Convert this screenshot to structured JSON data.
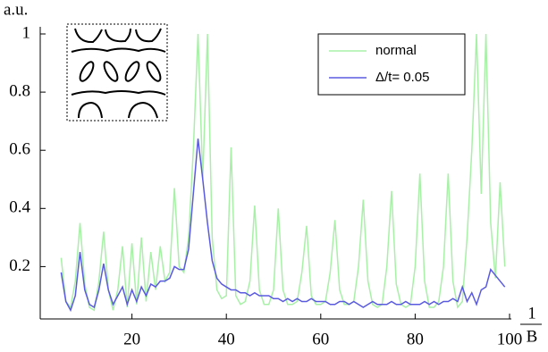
{
  "chart_data": {
    "type": "line",
    "y_label": "a.u.",
    "x_label_numerator": "1",
    "x_label_denominator": "B",
    "x": [
      5,
      6,
      7,
      8,
      9,
      10,
      11,
      12,
      13,
      14,
      15,
      16,
      17,
      18,
      19,
      20,
      21,
      22,
      23,
      24,
      25,
      26,
      27,
      28,
      29,
      30,
      31,
      32,
      33,
      34,
      35,
      36,
      37,
      38,
      39,
      40,
      41,
      42,
      43,
      44,
      45,
      46,
      47,
      48,
      49,
      50,
      51,
      52,
      53,
      54,
      55,
      56,
      57,
      58,
      59,
      60,
      61,
      62,
      63,
      64,
      65,
      66,
      67,
      68,
      69,
      70,
      71,
      72,
      73,
      74,
      75,
      76,
      77,
      78,
      79,
      80,
      81,
      82,
      83,
      84,
      85,
      86,
      87,
      88,
      89,
      90,
      91,
      92,
      93,
      94,
      95,
      96,
      97,
      98,
      99
    ],
    "series": [
      {
        "name": "normal",
        "color": "#a8f0a8",
        "values": [
          0.23,
          0.08,
          0.06,
          0.15,
          0.35,
          0.14,
          0.06,
          0.05,
          0.15,
          0.32,
          0.12,
          0.05,
          0.12,
          0.27,
          0.06,
          0.28,
          0.07,
          0.3,
          0.08,
          0.25,
          0.12,
          0.27,
          0.15,
          0.18,
          0.47,
          0.2,
          0.18,
          0.3,
          0.6,
          1,
          0.5,
          1,
          0.3,
          0.12,
          0.09,
          0.1,
          0.61,
          0.1,
          0.07,
          0.08,
          0.15,
          0.41,
          0.12,
          0.07,
          0.07,
          0.12,
          0.4,
          0.12,
          0.07,
          0.07,
          0.08,
          0.18,
          0.34,
          0.1,
          0.07,
          0.07,
          0.08,
          0.18,
          0.36,
          0.12,
          0.07,
          0.07,
          0.08,
          0.2,
          0.43,
          0.15,
          0.07,
          0.06,
          0.07,
          0.2,
          0.46,
          0.14,
          0.07,
          0.06,
          0.07,
          0.2,
          0.52,
          0.15,
          0.06,
          0.06,
          0.08,
          0.2,
          0.52,
          0.15,
          0.06,
          0.08,
          0.3,
          0.6,
          1,
          0.45,
          1,
          0.35,
          0.16,
          0.49,
          0.2
        ]
      },
      {
        "name": "Δ/t= 0.05",
        "color": "#5a5ae0",
        "values": [
          0.18,
          0.08,
          0.05,
          0.1,
          0.25,
          0.12,
          0.07,
          0.06,
          0.12,
          0.21,
          0.12,
          0.07,
          0.1,
          0.13,
          0.07,
          0.12,
          0.08,
          0.13,
          0.1,
          0.14,
          0.13,
          0.15,
          0.15,
          0.16,
          0.2,
          0.19,
          0.19,
          0.26,
          0.45,
          0.64,
          0.5,
          0.35,
          0.22,
          0.16,
          0.14,
          0.13,
          0.12,
          0.12,
          0.11,
          0.11,
          0.1,
          0.11,
          0.1,
          0.1,
          0.1,
          0.09,
          0.09,
          0.08,
          0.09,
          0.08,
          0.09,
          0.08,
          0.08,
          0.09,
          0.08,
          0.08,
          0.08,
          0.07,
          0.07,
          0.08,
          0.08,
          0.07,
          0.08,
          0.07,
          0.06,
          0.07,
          0.08,
          0.07,
          0.07,
          0.07,
          0.08,
          0.07,
          0.07,
          0.08,
          0.07,
          0.07,
          0.07,
          0.08,
          0.07,
          0.08,
          0.07,
          0.08,
          0.08,
          0.09,
          0.08,
          0.13,
          0.08,
          0.11,
          0.07,
          0.12,
          0.13,
          0.19,
          0.17,
          0.15,
          0.13
        ]
      }
    ],
    "xlim": [
      0,
      100
    ],
    "xticks": [
      20,
      40,
      60,
      80,
      100
    ],
    "ylim": [
      0.02,
      1
    ],
    "yticks": [
      0.2,
      0.4,
      0.6,
      0.8,
      1
    ]
  }
}
